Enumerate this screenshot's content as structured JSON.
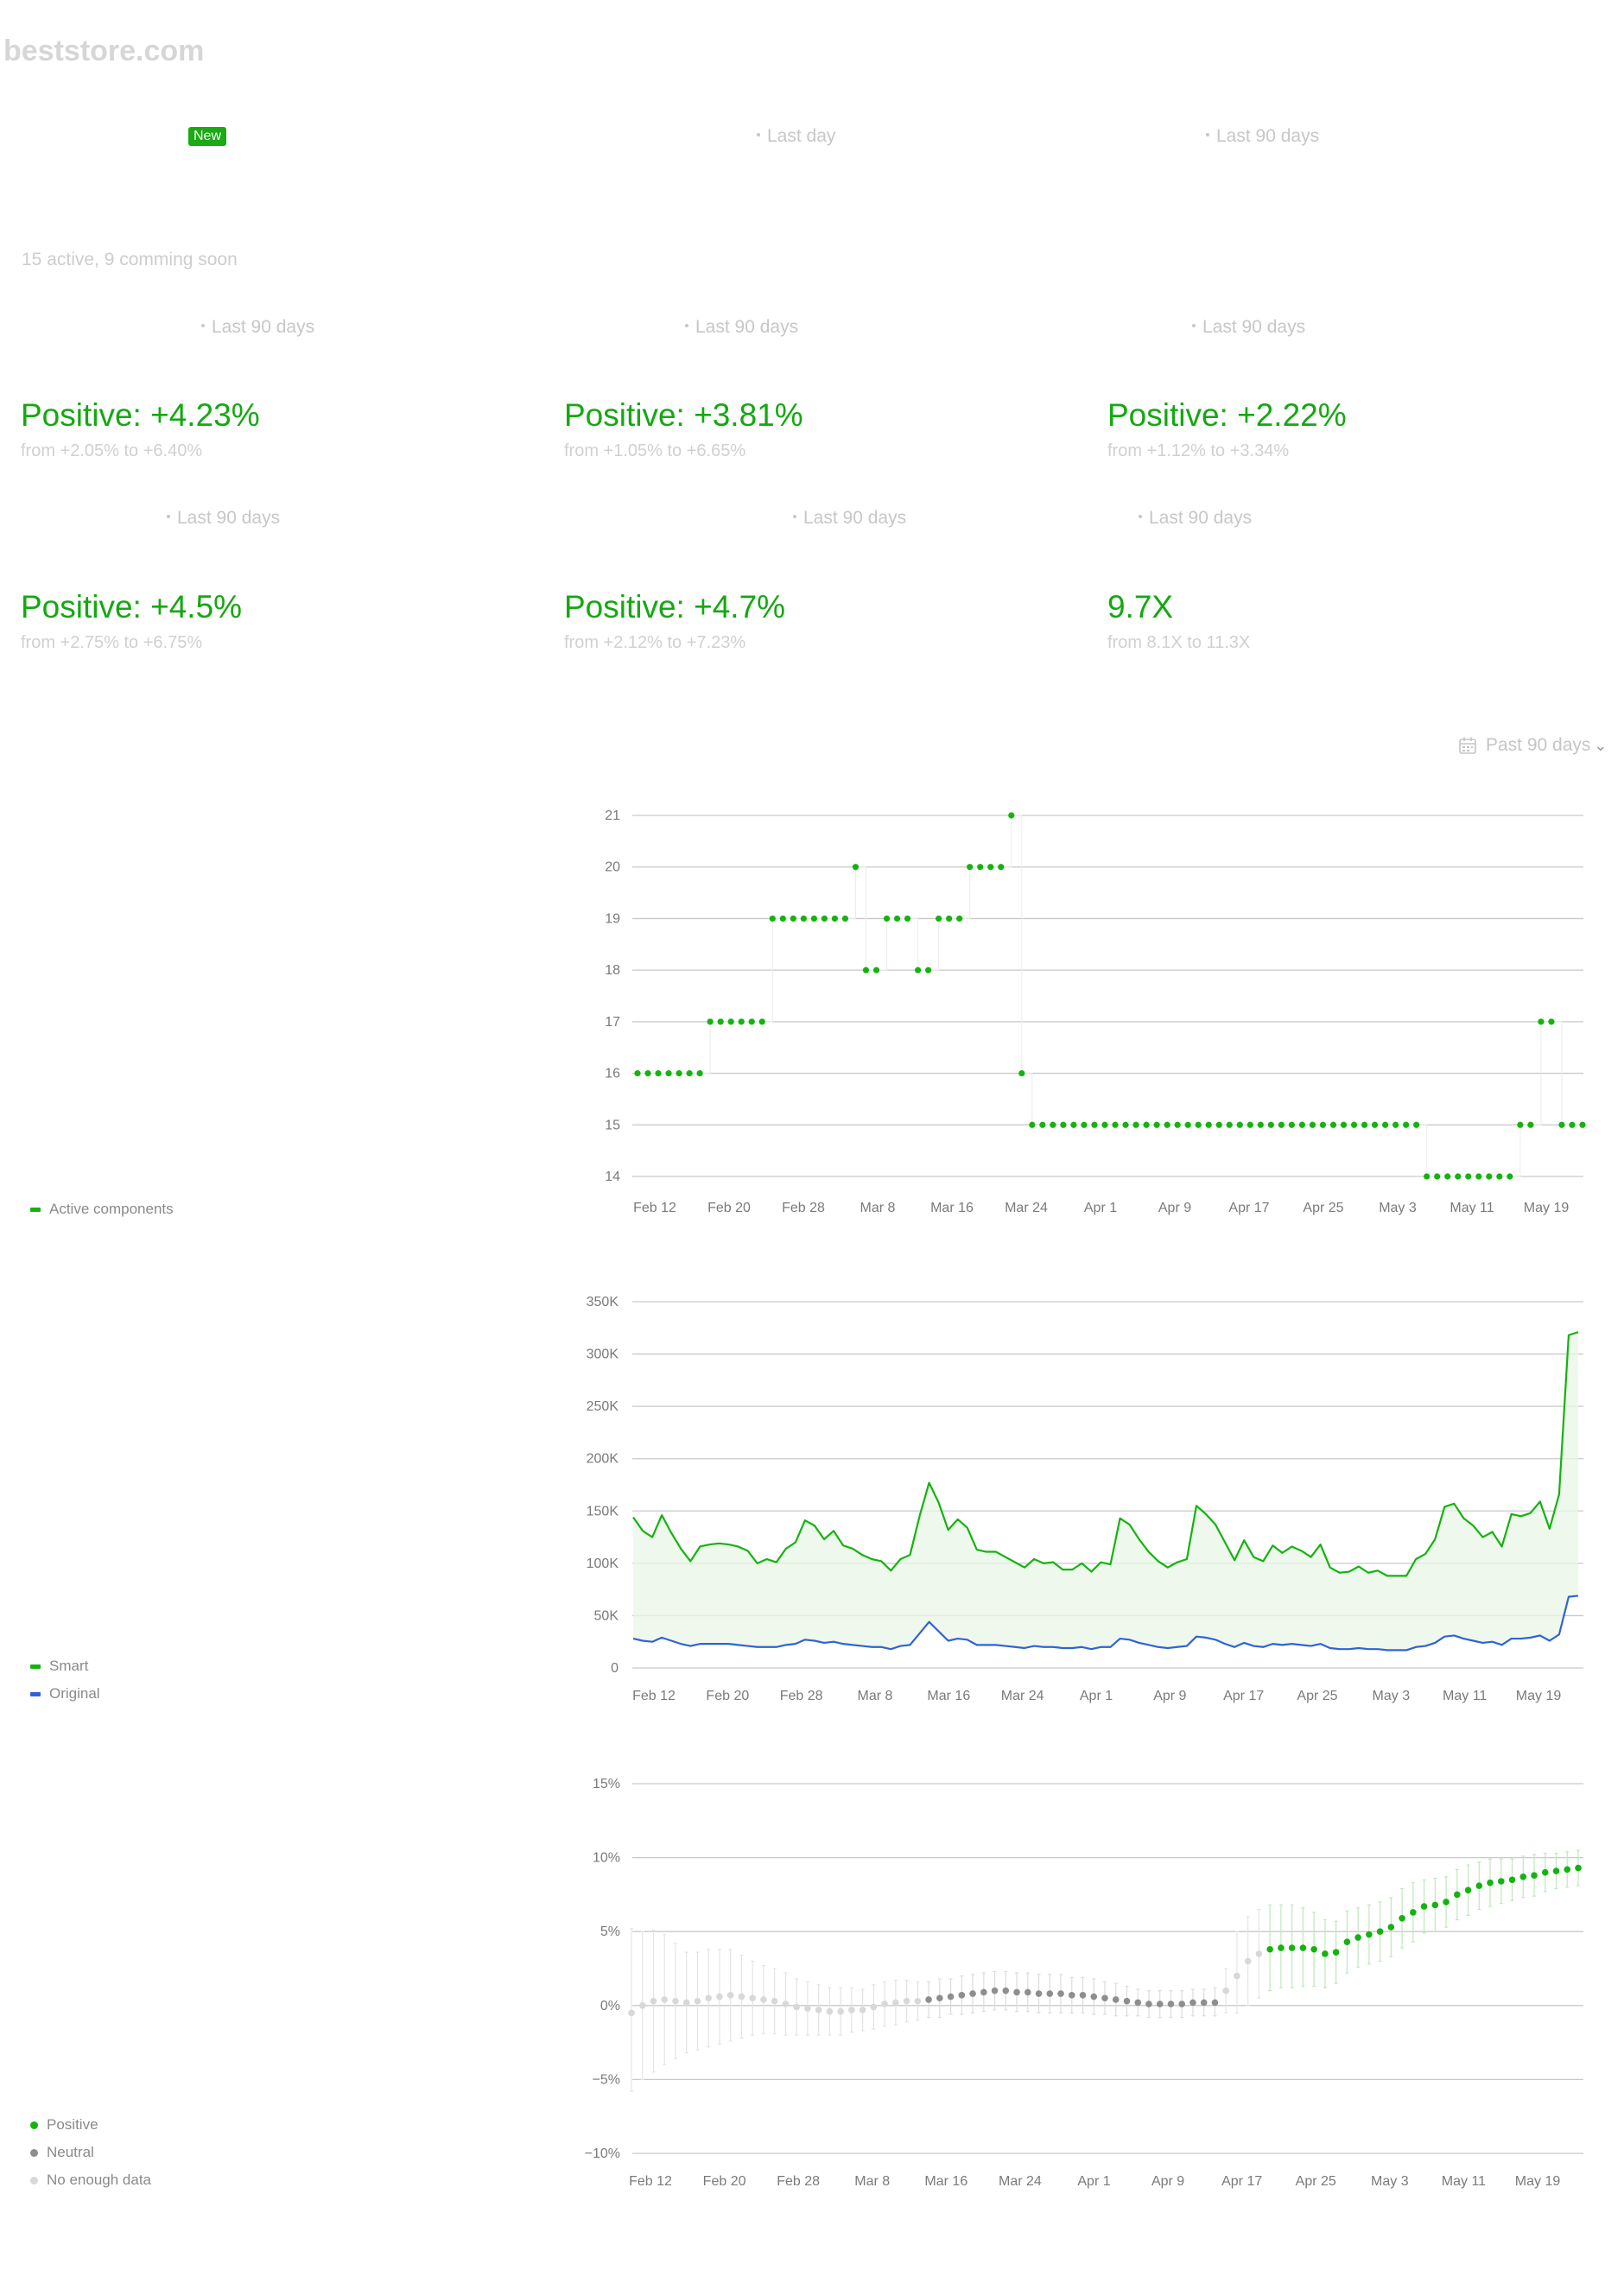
{
  "header": {
    "site": "beststore.com"
  },
  "badge": {
    "label": "New"
  },
  "periods": {
    "top_mid": "Last day",
    "top_right": "Last 90 days",
    "r1_left": "Last 90 days",
    "r1_mid": "Last 90 days",
    "r1_right": "Last 90 days",
    "r2_left": "Last 90 days",
    "r2_mid": "Last 90 days",
    "r2_right": "Last 90 days"
  },
  "components_note": "15 active, 9 comming soon",
  "metrics": [
    {
      "value": "Positive: +4.23%",
      "range": "from +2.05% to +6.40%"
    },
    {
      "value": "Positive: +3.81%",
      "range": "from +1.05% to +6.65%"
    },
    {
      "value": "Positive: +2.22%",
      "range": "from +1.12% to +3.34%"
    },
    {
      "value": "Positive: +4.5%",
      "range": "from +2.75% to +6.75%"
    },
    {
      "value": "Positive: +4.7%",
      "range": "from +2.12% to +7.23%"
    },
    {
      "value": "9.7X",
      "range": "from 8.1X to 11.3X"
    }
  ],
  "range_selector": {
    "label": "Past 90 days",
    "icon": "calendar-icon"
  },
  "colors": {
    "green": "#14b30f",
    "blue": "#2f63d6",
    "gray": "#8e8e8e",
    "light": "#d8d8d8"
  },
  "chart_data": [
    {
      "type": "scatter",
      "title": "",
      "ylim": [
        14,
        21
      ],
      "y_ticks": [
        "21",
        "20",
        "19",
        "18",
        "17",
        "16",
        "15",
        "14"
      ],
      "x_ticks": [
        "Feb 12",
        "Feb 20",
        "Feb 28",
        "Mar 8",
        "Mar 16",
        "Mar 24",
        "Apr 1",
        "Apr 9",
        "Apr 17",
        "Apr 25",
        "May 3",
        "May 11",
        "May 19"
      ],
      "series": [
        {
          "name": "Active components",
          "values": [
            16,
            16,
            16,
            16,
            16,
            16,
            16,
            17,
            17,
            17,
            17,
            17,
            17,
            19,
            19,
            19,
            19,
            19,
            19,
            19,
            19,
            20,
            18,
            18,
            19,
            19,
            19,
            18,
            18,
            19,
            19,
            19,
            20,
            20,
            20,
            20,
            21,
            16,
            15,
            15,
            15,
            15,
            15,
            15,
            15,
            15,
            15,
            15,
            15,
            15,
            15,
            15,
            15,
            15,
            15,
            15,
            15,
            15,
            15,
            15,
            15,
            15,
            15,
            15,
            15,
            15,
            15,
            15,
            15,
            15,
            15,
            15,
            15,
            15,
            15,
            15,
            14,
            14,
            14,
            14,
            14,
            14,
            14,
            14,
            14,
            15,
            15,
            17,
            17,
            15,
            15,
            15
          ]
        }
      ]
    },
    {
      "type": "area",
      "ylim": [
        0,
        350000
      ],
      "y_ticks": [
        "350K",
        "300K",
        "250K",
        "200K",
        "150K",
        "100K",
        "50K",
        "0"
      ],
      "x_ticks": [
        "Feb 12",
        "Feb 20",
        "Feb 28",
        "Mar 8",
        "Mar 16",
        "Mar 24",
        "Apr 1",
        "Apr 9",
        "Apr 17",
        "Apr 25",
        "May 3",
        "May 11",
        "May 19"
      ],
      "series": [
        {
          "name": "Smart",
          "values": [
            144000,
            131000,
            125000,
            146000,
            129000,
            114000,
            102000,
            116000,
            118000,
            119000,
            118000,
            116000,
            112000,
            100000,
            104000,
            101000,
            114000,
            120000,
            141000,
            136000,
            123000,
            131000,
            117000,
            114000,
            108000,
            104000,
            102000,
            93000,
            104000,
            108000,
            145000,
            177000,
            158000,
            132000,
            142000,
            134000,
            113000,
            111000,
            111000,
            106000,
            101000,
            96000,
            104000,
            100000,
            101000,
            94000,
            94000,
            100000,
            92000,
            101000,
            99000,
            143000,
            137000,
            123000,
            111000,
            102000,
            96000,
            101000,
            104000,
            155000,
            147000,
            137000,
            120000,
            103000,
            122000,
            106000,
            102000,
            117000,
            110000,
            116000,
            112000,
            106000,
            118000,
            96000,
            91000,
            92000,
            97000,
            91000,
            93000,
            88000,
            88000,
            88000,
            104000,
            109000,
            123000,
            154000,
            157000,
            143000,
            136000,
            125000,
            130000,
            116000,
            147000,
            145000,
            148000,
            159000,
            133000,
            166000,
            318000,
            321000
          ]
        },
        {
          "name": "Original",
          "values": [
            28000,
            26000,
            25000,
            29000,
            26000,
            23000,
            21000,
            23000,
            23000,
            23000,
            23000,
            22000,
            21000,
            20000,
            20000,
            20000,
            22000,
            23000,
            27000,
            26000,
            24000,
            25000,
            23000,
            22000,
            21000,
            20000,
            20000,
            18000,
            21000,
            22000,
            33000,
            44000,
            35000,
            26000,
            28000,
            27000,
            22000,
            22000,
            22000,
            21000,
            20000,
            19000,
            21000,
            20000,
            20000,
            19000,
            19000,
            20000,
            18000,
            20000,
            20000,
            28000,
            27000,
            24000,
            22000,
            20000,
            19000,
            20000,
            21000,
            30000,
            29000,
            27000,
            23000,
            20000,
            24000,
            21000,
            20000,
            23000,
            22000,
            23000,
            22000,
            21000,
            23000,
            19000,
            18000,
            18000,
            19000,
            18000,
            18000,
            17000,
            17000,
            17000,
            20000,
            21000,
            24000,
            30000,
            31000,
            28000,
            26000,
            24000,
            25000,
            22000,
            28000,
            28000,
            29000,
            31000,
            26000,
            32000,
            68000,
            69000
          ]
        }
      ]
    },
    {
      "type": "scatter",
      "ylim": [
        -10,
        15
      ],
      "y_ticks": [
        "15%",
        "10%",
        "5%",
        "0%",
        "−5%",
        "−10%"
      ],
      "x_ticks": [
        "Feb 12",
        "Feb 20",
        "Feb 28",
        "Mar 8",
        "Mar 16",
        "Mar 24",
        "Apr 1",
        "Apr 9",
        "Apr 17",
        "Apr 25",
        "May 3",
        "May 11",
        "May 19"
      ],
      "series": [
        {
          "name": "Positive",
          "color": "#14b30f"
        },
        {
          "name": "Neutral",
          "color": "#8e8e8e"
        },
        {
          "name": "No enough data",
          "color": "#d8d8d8"
        }
      ],
      "points": [
        [
          -0.5,
          -5.8,
          5.2,
          "n"
        ],
        [
          0.0,
          -5.0,
          5.0,
          "n"
        ],
        [
          0.3,
          -4.5,
          5.1,
          "n"
        ],
        [
          0.4,
          -4.0,
          4.8,
          "n"
        ],
        [
          0.3,
          -3.6,
          4.2,
          "n"
        ],
        [
          0.2,
          -3.2,
          3.6,
          "n"
        ],
        [
          0.3,
          -3.0,
          3.6,
          "n"
        ],
        [
          0.5,
          -2.8,
          3.8,
          "n"
        ],
        [
          0.6,
          -2.6,
          3.8,
          "n"
        ],
        [
          0.7,
          -2.4,
          3.8,
          "n"
        ],
        [
          0.6,
          -2.2,
          3.4,
          "n"
        ],
        [
          0.5,
          -2.0,
          3.0,
          "n"
        ],
        [
          0.4,
          -1.9,
          2.7,
          "n"
        ],
        [
          0.3,
          -1.9,
          2.5,
          "n"
        ],
        [
          0.1,
          -2.0,
          2.2,
          "n"
        ],
        [
          -0.1,
          -2.0,
          1.8,
          "n"
        ],
        [
          -0.2,
          -2.0,
          1.6,
          "n"
        ],
        [
          -0.3,
          -2.0,
          1.4,
          "n"
        ],
        [
          -0.4,
          -2.0,
          1.2,
          "n"
        ],
        [
          -0.4,
          -2.0,
          1.2,
          "n"
        ],
        [
          -0.3,
          -1.8,
          1.2,
          "n"
        ],
        [
          -0.3,
          -1.7,
          1.1,
          "n"
        ],
        [
          -0.1,
          -1.6,
          1.4,
          "n"
        ],
        [
          0.1,
          -1.4,
          1.6,
          "n"
        ],
        [
          0.2,
          -1.3,
          1.7,
          "n"
        ],
        [
          0.3,
          -1.1,
          1.7,
          "n"
        ],
        [
          0.3,
          -1.0,
          1.6,
          "n"
        ],
        [
          0.4,
          -0.8,
          1.6,
          "u"
        ],
        [
          0.5,
          -0.8,
          1.8,
          "u"
        ],
        [
          0.6,
          -0.6,
          1.8,
          "u"
        ],
        [
          0.7,
          -0.6,
          2.0,
          "u"
        ],
        [
          0.8,
          -0.5,
          2.1,
          "u"
        ],
        [
          0.9,
          -0.4,
          2.2,
          "u"
        ],
        [
          1.0,
          -0.3,
          2.3,
          "u"
        ],
        [
          1.0,
          -0.3,
          2.3,
          "u"
        ],
        [
          0.9,
          -0.4,
          2.2,
          "u"
        ],
        [
          0.9,
          -0.4,
          2.2,
          "u"
        ],
        [
          0.8,
          -0.5,
          2.1,
          "u"
        ],
        [
          0.8,
          -0.5,
          2.1,
          "u"
        ],
        [
          0.8,
          -0.5,
          2.1,
          "u"
        ],
        [
          0.7,
          -0.5,
          1.9,
          "u"
        ],
        [
          0.7,
          -0.5,
          1.9,
          "u"
        ],
        [
          0.6,
          -0.6,
          1.8,
          "u"
        ],
        [
          0.5,
          -0.6,
          1.6,
          "u"
        ],
        [
          0.4,
          -0.7,
          1.5,
          "u"
        ],
        [
          0.3,
          -0.7,
          1.3,
          "u"
        ],
        [
          0.2,
          -0.7,
          1.1,
          "u"
        ],
        [
          0.1,
          -0.8,
          1.0,
          "u"
        ],
        [
          0.1,
          -0.8,
          1.0,
          "u"
        ],
        [
          0.1,
          -0.8,
          1.0,
          "u"
        ],
        [
          0.1,
          -0.8,
          1.0,
          "u"
        ],
        [
          0.2,
          -0.7,
          1.1,
          "u"
        ],
        [
          0.2,
          -0.7,
          1.1,
          "u"
        ],
        [
          0.2,
          -0.7,
          1.2,
          "u"
        ],
        [
          1.0,
          -0.5,
          2.5,
          "n"
        ],
        [
          2.0,
          -0.5,
          5.0,
          "n"
        ],
        [
          3.0,
          0.0,
          6.0,
          "n"
        ],
        [
          3.5,
          0.5,
          6.5,
          "n"
        ],
        [
          3.8,
          1.0,
          6.8,
          "p"
        ],
        [
          3.9,
          1.2,
          6.8,
          "p"
        ],
        [
          3.9,
          1.2,
          6.8,
          "p"
        ],
        [
          3.9,
          1.3,
          6.6,
          "p"
        ],
        [
          3.8,
          1.3,
          6.3,
          "p"
        ],
        [
          3.5,
          1.2,
          5.8,
          "p"
        ],
        [
          3.6,
          1.5,
          5.7,
          "p"
        ],
        [
          4.3,
          2.2,
          6.4,
          "p"
        ],
        [
          4.6,
          2.6,
          6.6,
          "p"
        ],
        [
          4.8,
          2.8,
          6.8,
          "p"
        ],
        [
          5.0,
          3.0,
          7.0,
          "p"
        ],
        [
          5.3,
          3.3,
          7.3,
          "p"
        ],
        [
          5.9,
          3.9,
          7.9,
          "p"
        ],
        [
          6.3,
          4.3,
          8.3,
          "p"
        ],
        [
          6.7,
          4.9,
          8.5,
          "p"
        ],
        [
          6.8,
          5.0,
          8.6,
          "p"
        ],
        [
          7.0,
          5.3,
          8.7,
          "p"
        ],
        [
          7.5,
          5.8,
          9.2,
          "p"
        ],
        [
          7.8,
          6.1,
          9.5,
          "p"
        ],
        [
          8.1,
          6.5,
          9.7,
          "p"
        ],
        [
          8.3,
          6.7,
          9.9,
          "p"
        ],
        [
          8.4,
          6.9,
          9.9,
          "p"
        ],
        [
          8.5,
          7.1,
          9.9,
          "p"
        ],
        [
          8.7,
          7.3,
          10.1,
          "p"
        ],
        [
          8.8,
          7.4,
          10.2,
          "p"
        ],
        [
          9.0,
          7.7,
          10.3,
          "p"
        ],
        [
          9.1,
          7.9,
          10.3,
          "p"
        ],
        [
          9.2,
          8.0,
          10.4,
          "p"
        ],
        [
          9.3,
          8.1,
          10.5,
          "p"
        ]
      ]
    }
  ]
}
